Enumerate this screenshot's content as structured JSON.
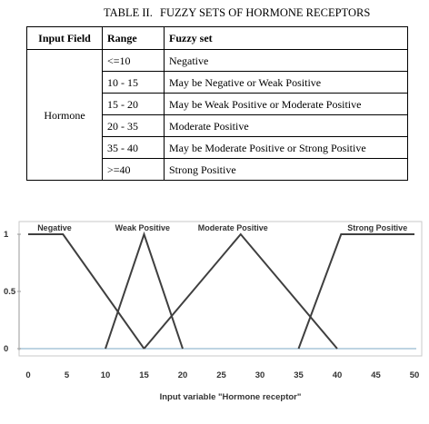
{
  "caption": {
    "label": "TABLE II.",
    "title": "FUZZY SETS OF HORMONE RECEPTORS"
  },
  "table": {
    "headers": [
      "Input Field",
      "Range",
      "Fuzzy set"
    ],
    "input_field": "Hormone",
    "rows": [
      {
        "range": "<=10",
        "fuzzy_set": "Negative"
      },
      {
        "range": "10 - 15",
        "fuzzy_set": "May be Negative or Weak Positive"
      },
      {
        "range": "15 - 20",
        "fuzzy_set": "May be  Weak Positive or  Moderate Positive"
      },
      {
        "range": "20 - 35",
        "fuzzy_set": "Moderate Positive"
      },
      {
        "range": "35 - 40",
        "fuzzy_set": "May be  Moderate Positive or Strong Positive"
      },
      {
        "range": ">=40",
        "fuzzy_set": "Strong Positive"
      }
    ]
  },
  "chart_data": {
    "type": "line",
    "title": "",
    "xlabel": "Input variable \"Hormone receptor\"",
    "ylabel": "",
    "xlim": [
      0,
      50
    ],
    "ylim": [
      0,
      1
    ],
    "x_ticks": [
      "0",
      "5",
      "10",
      "15",
      "20",
      "25",
      "30",
      "35",
      "40",
      "45",
      "50"
    ],
    "y_ticks": [
      "1",
      "0.5",
      "0"
    ],
    "grid": false,
    "line_color": "#3f3f3f",
    "series": [
      {
        "name": "Negative",
        "x": [
          0,
          4.5,
          15
        ],
        "y": [
          1,
          1,
          0
        ]
      },
      {
        "name": "Weak Positive",
        "x": [
          10,
          15,
          20
        ],
        "y": [
          0,
          1,
          0
        ]
      },
      {
        "name": "Moderate Positive",
        "x": [
          15,
          27.5,
          40
        ],
        "y": [
          0,
          1,
          0
        ]
      },
      {
        "name": "Strong Positive",
        "x": [
          35,
          40.5,
          50
        ],
        "y": [
          0,
          1,
          1
        ]
      }
    ]
  }
}
